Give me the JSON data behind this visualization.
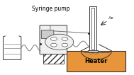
{
  "bg_color": "#ffffff",
  "heater_color": "#e8943a",
  "heater_text": "Heater",
  "pump_label": "Syringe pump",
  "ar2_label": "Ar",
  "ar2_sub": "2",
  "line_color": "#777777",
  "dark_line": "#333333",
  "pump_body_color": "#f0f0f0",
  "pump_screen_color": "#cccccc"
}
